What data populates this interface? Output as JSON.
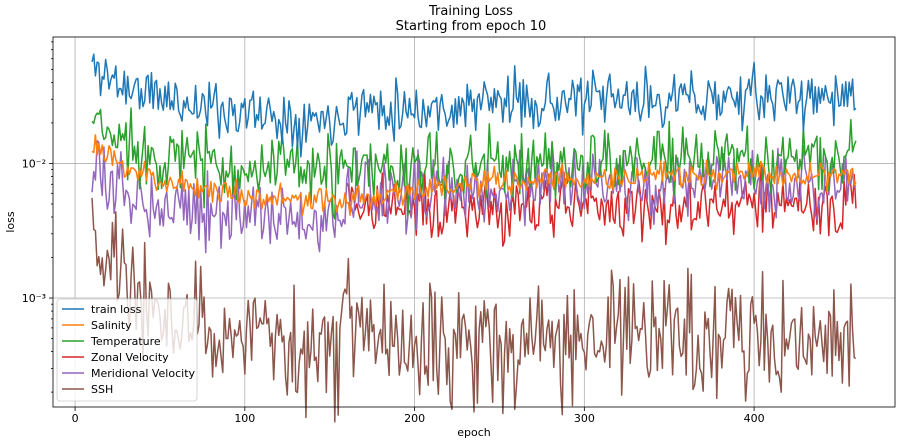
{
  "chart_data": {
    "type": "line",
    "title": "Training Loss",
    "subtitle": "Starting from epoch 10",
    "xlabel": "epoch",
    "ylabel": "loss",
    "yscale": "log",
    "xlim": [
      -13,
      483
    ],
    "ylim": [
      0.000155,
      0.087
    ],
    "xticks": [
      0,
      100,
      200,
      300,
      400
    ],
    "xtick_labels": [
      "0",
      "100",
      "200",
      "300",
      "400"
    ],
    "yticks": [
      0.001,
      0.01
    ],
    "ytick_labels": [
      "10⁻³",
      "10⁻²"
    ],
    "grid": true,
    "legend_position": "lower-left",
    "x_start": 10,
    "x_end": 460,
    "series": [
      {
        "name": "train loss",
        "color": "#1f77b4",
        "anchors": [
          [
            10,
            0.053
          ],
          [
            15,
            0.048
          ],
          [
            30,
            0.037
          ],
          [
            60,
            0.029
          ],
          [
            100,
            0.024
          ],
          [
            130,
            0.0215
          ],
          [
            155,
            0.022
          ],
          [
            160,
            0.027
          ],
          [
            200,
            0.026
          ],
          [
            215,
            0.025
          ],
          [
            250,
            0.029
          ],
          [
            300,
            0.029
          ],
          [
            350,
            0.03
          ],
          [
            400,
            0.031
          ],
          [
            460,
            0.032
          ]
        ],
        "noise": 0.1,
        "seed": 11
      },
      {
        "name": "Salinity",
        "color": "#ff7f0e",
        "anchors": [
          [
            10,
            0.0145
          ],
          [
            20,
            0.0105
          ],
          [
            50,
            0.0075
          ],
          [
            100,
            0.0058
          ],
          [
            150,
            0.0051
          ],
          [
            200,
            0.0064
          ],
          [
            250,
            0.0072
          ],
          [
            300,
            0.0077
          ],
          [
            400,
            0.0083
          ],
          [
            460,
            0.0083
          ]
        ],
        "noise": 0.05,
        "seed": 23
      },
      {
        "name": "Temperature",
        "color": "#2ca02c",
        "anchors": [
          [
            10,
            0.02
          ],
          [
            20,
            0.016
          ],
          [
            50,
            0.0115
          ],
          [
            100,
            0.0092
          ],
          [
            150,
            0.0085
          ],
          [
            200,
            0.0088
          ],
          [
            250,
            0.0098
          ],
          [
            300,
            0.0103
          ],
          [
            350,
            0.0106
          ],
          [
            460,
            0.0108
          ]
        ],
        "noise": 0.13,
        "seed": 37
      },
      {
        "name": "Zonal Velocity",
        "color": "#d62728",
        "anchors": [
          [
            160,
            0.0055
          ],
          [
            200,
            0.0045
          ],
          [
            250,
            0.0046
          ],
          [
            300,
            0.0047
          ],
          [
            350,
            0.0047
          ],
          [
            400,
            0.0049
          ],
          [
            460,
            0.005
          ]
        ],
        "noise": 0.12,
        "seed": 41
      },
      {
        "name": "Meridional Velocity",
        "color": "#9467bd",
        "anchors": [
          [
            10,
            0.0085
          ],
          [
            20,
            0.0066
          ],
          [
            50,
            0.0052
          ],
          [
            100,
            0.0044
          ],
          [
            130,
            0.0036
          ],
          [
            150,
            0.0035
          ],
          [
            160,
            0.0058
          ],
          [
            200,
            0.0062
          ],
          [
            250,
            0.0066
          ],
          [
            300,
            0.0068
          ],
          [
            400,
            0.0071
          ],
          [
            460,
            0.0071
          ]
        ],
        "noise": 0.13,
        "seed": 53
      },
      {
        "name": "SSH",
        "color": "#8c564b",
        "anchors": [
          [
            10,
            0.0034
          ],
          [
            15,
            0.0022
          ],
          [
            25,
            0.0015
          ],
          [
            40,
            0.00105
          ],
          [
            60,
            0.0007
          ],
          [
            80,
            0.00057
          ],
          [
            100,
            0.00048
          ],
          [
            130,
            0.00038
          ],
          [
            155,
            0.0004
          ],
          [
            160,
            0.00105
          ],
          [
            170,
            0.00057
          ],
          [
            200,
            0.00045
          ],
          [
            250,
            0.0005
          ],
          [
            300,
            0.0005
          ],
          [
            350,
            0.00052
          ],
          [
            400,
            0.00052
          ],
          [
            460,
            0.00048
          ]
        ],
        "noise": 0.22,
        "seed": 67
      }
    ]
  }
}
